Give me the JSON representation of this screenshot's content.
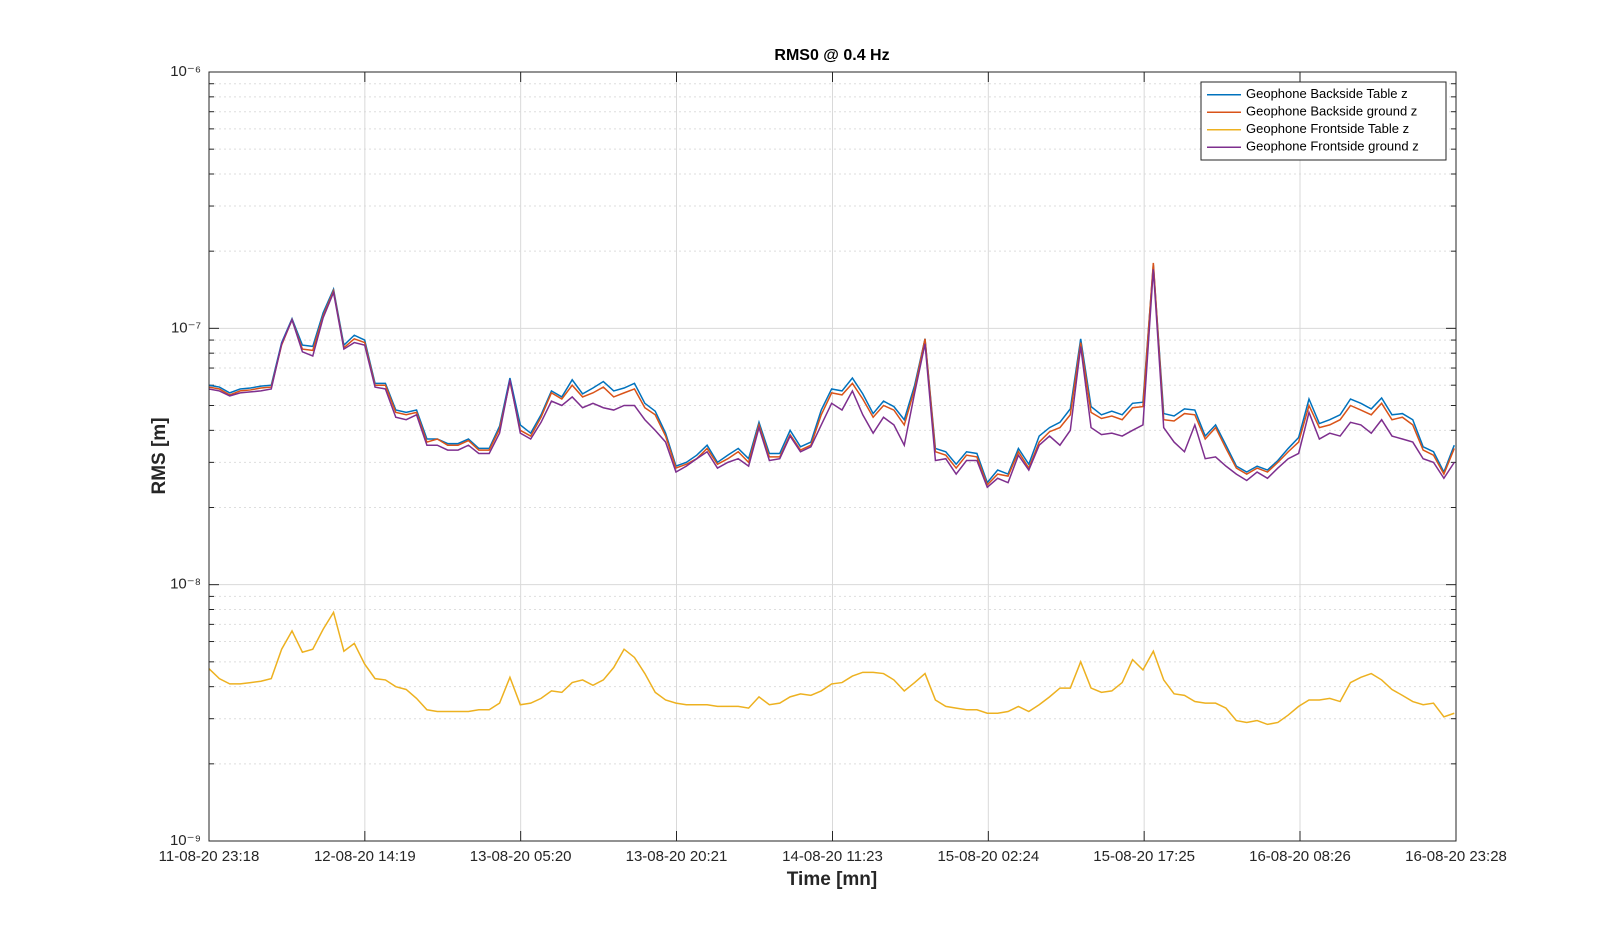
{
  "chart_data": {
    "type": "line",
    "title": "RMS0 @ 0.4 Hz",
    "x_label": "Time [mn]",
    "y_label": "RMS [m]",
    "log_y": true,
    "grid": true,
    "legend": "northeast",
    "xlim": [
      0,
      120.167
    ],
    "xticks": [
      {
        "value": 0,
        "label": "11-08-20 23:18"
      },
      {
        "value": 15.017,
        "label": "12-08-20 14:19"
      },
      {
        "value": 30.033,
        "label": "13-08-20 05:20"
      },
      {
        "value": 45.05,
        "label": "13-08-20 20:21"
      },
      {
        "value": 60.083,
        "label": "14-08-20 11:23"
      },
      {
        "value": 75.1,
        "label": "15-08-20 02:24"
      },
      {
        "value": 90.117,
        "label": "15-08-20 17:25"
      },
      {
        "value": 105.133,
        "label": "16-08-20 08:26"
      },
      {
        "value": 120.167,
        "label": "16-08-20 23:28"
      }
    ],
    "ylim": [
      1e-09,
      1e-06
    ],
    "yticks": [
      {
        "value": 1e-09,
        "label": "10⁻⁹"
      },
      {
        "value": 1e-08,
        "label": "10⁻⁸"
      },
      {
        "value": 1e-07,
        "label": "10⁻⁷"
      },
      {
        "value": 1e-06,
        "label": "10⁻⁶"
      }
    ],
    "x": [
      0,
      1,
      2,
      3,
      4,
      5,
      6,
      7,
      8,
      9,
      10,
      11,
      12,
      13,
      14,
      15,
      16,
      17,
      18,
      19,
      20,
      21,
      22,
      23,
      24,
      25,
      26,
      27,
      28,
      29,
      30,
      31,
      32,
      33,
      34,
      35,
      36,
      37,
      38,
      39,
      40,
      41,
      42,
      43,
      44,
      45,
      46,
      47,
      48,
      49,
      50,
      51,
      52,
      53,
      54,
      55,
      56,
      57,
      58,
      59,
      60,
      61,
      62,
      63,
      64,
      65,
      66,
      67,
      68,
      69,
      70,
      71,
      72,
      73,
      74,
      75,
      76,
      77,
      78,
      79,
      80,
      81,
      82,
      83,
      84,
      85,
      86,
      87,
      88,
      89,
      90,
      91,
      92,
      93,
      94,
      95,
      96,
      97,
      98,
      99,
      100,
      101,
      102,
      103,
      104,
      105,
      106,
      107,
      108,
      109,
      110,
      111,
      112,
      113,
      114,
      115,
      116,
      117,
      118,
      119,
      120
    ],
    "series": [
      {
        "name": "Geophone Backside Table z",
        "color": "#0072BD",
        "values": [
          6e-08,
          5.9e-08,
          5.6e-08,
          5.8e-08,
          5.85e-08,
          5.95e-08,
          6e-08,
          8.8e-08,
          1.09e-07,
          8.6e-08,
          8.5e-08,
          1.15e-07,
          1.42e-07,
          8.6e-08,
          9.4e-08,
          9e-08,
          6.1e-08,
          6.1e-08,
          4.8e-08,
          4.7e-08,
          4.8e-08,
          3.7e-08,
          3.7e-08,
          3.55e-08,
          3.55e-08,
          3.7e-08,
          3.4e-08,
          3.4e-08,
          4.15e-08,
          6.4e-08,
          4.2e-08,
          3.9e-08,
          4.6e-08,
          5.7e-08,
          5.4e-08,
          6.3e-08,
          5.55e-08,
          5.85e-08,
          6.2e-08,
          5.7e-08,
          5.85e-08,
          6.1e-08,
          5.1e-08,
          4.75e-08,
          3.9e-08,
          2.9e-08,
          3e-08,
          3.2e-08,
          3.5e-08,
          3e-08,
          3.2e-08,
          3.4e-08,
          3.1e-08,
          4.3e-08,
          3.25e-08,
          3.25e-08,
          4e-08,
          3.45e-08,
          3.6e-08,
          4.8e-08,
          5.8e-08,
          5.7e-08,
          6.4e-08,
          5.55e-08,
          4.65e-08,
          5.2e-08,
          4.95e-08,
          4.4e-08,
          6e-08,
          9.1e-08,
          3.4e-08,
          3.3e-08,
          2.95e-08,
          3.3e-08,
          3.25e-08,
          2.5e-08,
          2.8e-08,
          2.7e-08,
          3.4e-08,
          2.95e-08,
          3.8e-08,
          4.1e-08,
          4.3e-08,
          4.85e-08,
          9.1e-08,
          4.95e-08,
          4.6e-08,
          4.75e-08,
          4.6e-08,
          5.1e-08,
          5.15e-08,
          1.77e-07,
          4.65e-08,
          4.55e-08,
          4.85e-08,
          4.8e-08,
          3.8e-08,
          4.2e-08,
          3.5e-08,
          2.9e-08,
          2.75e-08,
          2.9e-08,
          2.8e-08,
          3.05e-08,
          3.4e-08,
          3.75e-08,
          5.3e-08,
          4.25e-08,
          4.4e-08,
          4.6e-08,
          5.3e-08,
          5.1e-08,
          4.85e-08,
          5.35e-08,
          4.6e-08,
          4.65e-08,
          4.4e-08,
          3.45e-08,
          3.3e-08,
          2.75e-08,
          3.5e-08
        ]
      },
      {
        "name": "Geophone Backside ground z",
        "color": "#D95319",
        "values": [
          5.9e-08,
          5.8e-08,
          5.5e-08,
          5.7e-08,
          5.75e-08,
          5.85e-08,
          5.9e-08,
          8.6e-08,
          1.08e-07,
          8.3e-08,
          8.2e-08,
          1.12e-07,
          1.4e-07,
          8.4e-08,
          9.1e-08,
          8.8e-08,
          6e-08,
          6e-08,
          4.7e-08,
          4.6e-08,
          4.7e-08,
          3.6e-08,
          3.7e-08,
          3.5e-08,
          3.5e-08,
          3.65e-08,
          3.35e-08,
          3.35e-08,
          4.05e-08,
          6.2e-08,
          4e-08,
          3.8e-08,
          4.5e-08,
          5.6e-08,
          5.3e-08,
          6e-08,
          5.4e-08,
          5.6e-08,
          5.9e-08,
          5.4e-08,
          5.6e-08,
          5.8e-08,
          4.9e-08,
          4.6e-08,
          3.8e-08,
          2.85e-08,
          2.95e-08,
          3.1e-08,
          3.4e-08,
          2.95e-08,
          3.1e-08,
          3.3e-08,
          3e-08,
          4.2e-08,
          3.15e-08,
          3.15e-08,
          3.85e-08,
          3.35e-08,
          3.5e-08,
          4.6e-08,
          5.6e-08,
          5.5e-08,
          6.1e-08,
          5.3e-08,
          4.5e-08,
          5e-08,
          4.8e-08,
          4.2e-08,
          5.8e-08,
          9.1e-08,
          3.3e-08,
          3.2e-08,
          2.85e-08,
          3.2e-08,
          3.15e-08,
          2.45e-08,
          2.7e-08,
          2.65e-08,
          3.3e-08,
          2.85e-08,
          3.6e-08,
          3.95e-08,
          4.1e-08,
          4.6e-08,
          8.8e-08,
          4.7e-08,
          4.45e-08,
          4.55e-08,
          4.4e-08,
          4.9e-08,
          4.95e-08,
          1.8e-07,
          4.4e-08,
          4.35e-08,
          4.65e-08,
          4.6e-08,
          3.7e-08,
          4.1e-08,
          3.4e-08,
          2.85e-08,
          2.7e-08,
          2.85e-08,
          2.75e-08,
          3e-08,
          3.3e-08,
          3.6e-08,
          5e-08,
          4.1e-08,
          4.2e-08,
          4.4e-08,
          5e-08,
          4.8e-08,
          4.6e-08,
          5.1e-08,
          4.4e-08,
          4.5e-08,
          4.2e-08,
          3.35e-08,
          3.2e-08,
          2.7e-08,
          3.4e-08
        ]
      },
      {
        "name": "Geophone Frontside Table z",
        "color": "#EDB120",
        "values": [
          4.7e-09,
          4.3e-09,
          4.1e-09,
          4.1e-09,
          4.15e-09,
          4.2e-09,
          4.3e-09,
          5.6e-09,
          6.6e-09,
          5.45e-09,
          5.6e-09,
          6.7e-09,
          7.8e-09,
          5.5e-09,
          5.9e-09,
          4.9e-09,
          4.3e-09,
          4.25e-09,
          4e-09,
          3.9e-09,
          3.6e-09,
          3.25e-09,
          3.2e-09,
          3.2e-09,
          3.2e-09,
          3.2e-09,
          3.25e-09,
          3.25e-09,
          3.45e-09,
          4.35e-09,
          3.4e-09,
          3.45e-09,
          3.6e-09,
          3.85e-09,
          3.8e-09,
          4.15e-09,
          4.25e-09,
          4.05e-09,
          4.25e-09,
          4.75e-09,
          5.6e-09,
          5.2e-09,
          4.5e-09,
          3.8e-09,
          3.55e-09,
          3.45e-09,
          3.4e-09,
          3.4e-09,
          3.4e-09,
          3.35e-09,
          3.35e-09,
          3.35e-09,
          3.3e-09,
          3.65e-09,
          3.4e-09,
          3.45e-09,
          3.65e-09,
          3.75e-09,
          3.7e-09,
          3.85e-09,
          4.1e-09,
          4.15e-09,
          4.4e-09,
          4.55e-09,
          4.55e-09,
          4.5e-09,
          4.25e-09,
          3.85e-09,
          4.15e-09,
          4.5e-09,
          3.55e-09,
          3.35e-09,
          3.3e-09,
          3.25e-09,
          3.25e-09,
          3.15e-09,
          3.15e-09,
          3.2e-09,
          3.35e-09,
          3.2e-09,
          3.4e-09,
          3.65e-09,
          3.95e-09,
          3.95e-09,
          5e-09,
          3.95e-09,
          3.8e-09,
          3.85e-09,
          4.15e-09,
          5.1e-09,
          4.65e-09,
          5.5e-09,
          4.25e-09,
          3.75e-09,
          3.7e-09,
          3.5e-09,
          3.45e-09,
          3.45e-09,
          3.3e-09,
          2.95e-09,
          2.9e-09,
          2.95e-09,
          2.85e-09,
          2.9e-09,
          3.1e-09,
          3.35e-09,
          3.55e-09,
          3.55e-09,
          3.6e-09,
          3.5e-09,
          4.15e-09,
          4.35e-09,
          4.5e-09,
          4.25e-09,
          3.9e-09,
          3.7e-09,
          3.5e-09,
          3.4e-09,
          3.45e-09,
          3.05e-09,
          3.15e-09
        ]
      },
      {
        "name": "Geophone Frontside ground z",
        "color": "#7E2F8E",
        "values": [
          5.8e-08,
          5.7e-08,
          5.45e-08,
          5.6e-08,
          5.65e-08,
          5.7e-08,
          5.8e-08,
          8.7e-08,
          1.08e-07,
          8.1e-08,
          7.8e-08,
          1.1e-07,
          1.38e-07,
          8.3e-08,
          8.8e-08,
          8.6e-08,
          5.9e-08,
          5.8e-08,
          4.5e-08,
          4.4e-08,
          4.6e-08,
          3.5e-08,
          3.5e-08,
          3.35e-08,
          3.35e-08,
          3.5e-08,
          3.25e-08,
          3.25e-08,
          3.9e-08,
          6.3e-08,
          3.9e-08,
          3.7e-08,
          4.3e-08,
          5.2e-08,
          5e-08,
          5.4e-08,
          4.9e-08,
          5.1e-08,
          4.9e-08,
          4.8e-08,
          5e-08,
          5e-08,
          4.4e-08,
          4e-08,
          3.6e-08,
          2.75e-08,
          2.9e-08,
          3.1e-08,
          3.3e-08,
          2.85e-08,
          3e-08,
          3.1e-08,
          2.9e-08,
          4.1e-08,
          3.05e-08,
          3.1e-08,
          3.8e-08,
          3.3e-08,
          3.45e-08,
          4.2e-08,
          5.1e-08,
          4.8e-08,
          5.7e-08,
          4.6e-08,
          3.9e-08,
          4.5e-08,
          4.2e-08,
          3.5e-08,
          5.6e-08,
          8.7e-08,
          3.05e-08,
          3.1e-08,
          2.7e-08,
          3.05e-08,
          3.05e-08,
          2.4e-08,
          2.6e-08,
          2.5e-08,
          3.2e-08,
          2.8e-08,
          3.5e-08,
          3.8e-08,
          3.5e-08,
          4e-08,
          8.5e-08,
          4.1e-08,
          3.85e-08,
          3.9e-08,
          3.8e-08,
          4e-08,
          4.2e-08,
          1.7e-07,
          4.1e-08,
          3.6e-08,
          3.3e-08,
          4.2e-08,
          3.1e-08,
          3.15e-08,
          2.9e-08,
          2.7e-08,
          2.55e-08,
          2.75e-08,
          2.6e-08,
          2.85e-08,
          3.1e-08,
          3.25e-08,
          4.7e-08,
          3.7e-08,
          3.9e-08,
          3.8e-08,
          4.3e-08,
          4.2e-08,
          3.9e-08,
          4.4e-08,
          3.8e-08,
          3.7e-08,
          3.6e-08,
          3.1e-08,
          3e-08,
          2.6e-08,
          3e-08
        ]
      }
    ]
  }
}
